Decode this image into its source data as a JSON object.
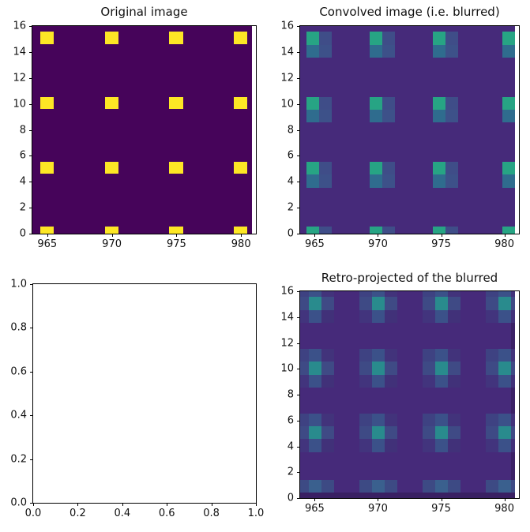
{
  "figure": {
    "background": "#ffffff",
    "layout": "2x2 subplot grid"
  },
  "chart_data": [
    {
      "type": "heatmap",
      "title": "Original image",
      "colormap": "viridis",
      "xlim": [
        963.85,
        981.15
      ],
      "ylim": [
        0,
        16
      ],
      "xticks": [
        965,
        970,
        975,
        980
      ],
      "xtick_labels": [
        "965",
        "970",
        "975",
        "980"
      ],
      "yticks": [
        0,
        2,
        4,
        6,
        8,
        10,
        12,
        14,
        16
      ],
      "ytick_labels": [
        "0",
        "2",
        "4",
        "6",
        "8",
        "10",
        "12",
        "14",
        "16"
      ],
      "image": {
        "extent": [
          963.85,
          980.85,
          0,
          16
        ],
        "background": "#46045a"
      },
      "impulse_centers_x": [
        965,
        970,
        975,
        980
      ],
      "impulse_centers_y": [
        0,
        5,
        10,
        15
      ],
      "impulse_color": "#fde725",
      "layers": [
        {
          "kind": "blobs",
          "cx": [
            965,
            970,
            975,
            980
          ],
          "cy": [
            15.05,
            10.05,
            5.05,
            0.03
          ],
          "cells": [
            {
              "dx": -0.55,
              "dy": 0.5,
              "w": 1.05,
              "h": 0.95,
              "color": "#fde725"
            }
          ]
        }
      ]
    },
    {
      "type": "heatmap",
      "title": "Convolved image (i.e. blurred)",
      "colormap": "viridis",
      "xlim": [
        963.85,
        981.15
      ],
      "ylim": [
        0,
        16
      ],
      "xticks": [
        965,
        970,
        975,
        980
      ],
      "xtick_labels": [
        "965",
        "970",
        "975",
        "980"
      ],
      "yticks": [
        0,
        2,
        4,
        6,
        8,
        10,
        12,
        14,
        16
      ],
      "ytick_labels": [
        "0",
        "2",
        "4",
        "6",
        "8",
        "10",
        "12",
        "14",
        "16"
      ],
      "image": {
        "extent": [
          963.85,
          980.85,
          0,
          16
        ],
        "background": "#462a7a"
      },
      "blob_centers_x": [
        965,
        970,
        975,
        980
      ],
      "blob_centers_y": [
        0,
        5,
        10,
        15
      ],
      "layers": [
        {
          "kind": "blobs",
          "cx": [
            965,
            970,
            975
          ],
          "cy": [
            15.05,
            10.05,
            5.05,
            0.05
          ],
          "cells": [
            {
              "dx": -0.65,
              "dy": 0.5,
              "w": 1,
              "h": 1,
              "color": "#27a484"
            },
            {
              "dx": 0.35,
              "dy": 0.5,
              "w": 1,
              "h": 1,
              "color": "#3f4d88"
            },
            {
              "dx": -0.65,
              "dy": -0.5,
              "w": 1,
              "h": 1,
              "color": "#2f6c8e"
            },
            {
              "dx": 0.35,
              "dy": -0.5,
              "w": 1,
              "h": 1,
              "color": "#3d5189"
            }
          ]
        },
        {
          "kind": "blobs",
          "cx": [
            980
          ],
          "cy": [
            15.05,
            10.05,
            5.05,
            0.05
          ],
          "cells": [
            {
              "dx": -0.15,
              "dy": 0.5,
              "w": 1.05,
              "h": 1,
              "color": "#27a484"
            },
            {
              "dx": -0.15,
              "dy": -0.5,
              "w": 1.05,
              "h": 1,
              "color": "#2f6c8e"
            }
          ]
        }
      ]
    },
    {
      "type": "empty",
      "title": "",
      "xlim": [
        0,
        1
      ],
      "ylim": [
        0,
        1
      ],
      "xticks": [
        0,
        0.2,
        0.4,
        0.6,
        0.8,
        1
      ],
      "xtick_labels": [
        "0.0",
        "0.2",
        "0.4",
        "0.6",
        "0.8",
        "1.0"
      ],
      "yticks": [
        0,
        0.2,
        0.4,
        0.6,
        0.8,
        1
      ],
      "ytick_labels": [
        "0.0",
        "0.2",
        "0.4",
        "0.6",
        "0.8",
        "1.0"
      ],
      "image": null,
      "layers": []
    },
    {
      "type": "heatmap",
      "title": "Retro-projected of the blurred",
      "colormap": "viridis",
      "xlim": [
        963.85,
        981.15
      ],
      "ylim": [
        0,
        16
      ],
      "xticks": [
        965,
        970,
        975,
        980
      ],
      "xtick_labels": [
        "965",
        "970",
        "975",
        "980"
      ],
      "yticks": [
        0,
        2,
        4,
        6,
        8,
        10,
        12,
        14,
        16
      ],
      "ytick_labels": [
        "0",
        "2",
        "4",
        "6",
        "8",
        "10",
        "12",
        "14",
        "16"
      ],
      "image": {
        "extent": [
          963.85,
          980.85,
          0,
          16
        ],
        "background": "#462a7a"
      },
      "blob_centers_x": [
        965,
        970,
        975,
        980
      ],
      "blob_centers_y": [
        0,
        5,
        10,
        15
      ],
      "layers": [
        {
          "kind": "rect",
          "x": 980.5,
          "y": 16,
          "w": 0.35,
          "h": 16,
          "color": "#3b2166"
        },
        {
          "kind": "rect",
          "x": 963.85,
          "y": 0.42,
          "w": 17,
          "h": 0.42,
          "color": "#392063"
        },
        {
          "kind": "blobs",
          "cx": [
            965,
            970,
            975,
            980
          ],
          "cy": [
            15.05,
            10.05,
            5.05
          ],
          "cells": [
            {
              "dx": -1.45,
              "dy": 1.5,
              "w": 1,
              "h": 1,
              "color": "#3e4282"
            },
            {
              "dx": -0.45,
              "dy": 1.5,
              "w": 1,
              "h": 1,
              "color": "#3b5189"
            },
            {
              "dx": 0.55,
              "dy": 1.5,
              "w": 1,
              "h": 1,
              "color": "#42337b"
            },
            {
              "dx": -1.45,
              "dy": 0.5,
              "w": 1,
              "h": 1,
              "color": "#3e4a85"
            },
            {
              "dx": -0.45,
              "dy": 0.5,
              "w": 1,
              "h": 1,
              "color": "#298b8d"
            },
            {
              "dx": 0.55,
              "dy": 0.5,
              "w": 1,
              "h": 1,
              "color": "#3f4a85"
            },
            {
              "dx": -1.45,
              "dy": -0.5,
              "w": 1,
              "h": 1,
              "color": "#42347d"
            },
            {
              "dx": -0.45,
              "dy": -0.5,
              "w": 1,
              "h": 1,
              "color": "#3b5189"
            },
            {
              "dx": 0.55,
              "dy": -0.5,
              "w": 1,
              "h": 1,
              "color": "#413179"
            }
          ]
        },
        {
          "kind": "blobs",
          "cx": [
            965,
            970,
            975,
            980
          ],
          "cy": [
            0
          ],
          "cells": [
            {
              "dx": -1.45,
              "dy": 1.42,
              "w": 1,
              "h": 1,
              "color": "#3d4a84"
            },
            {
              "dx": -0.45,
              "dy": 1.42,
              "w": 1,
              "h": 1,
              "color": "#3a608e"
            },
            {
              "dx": 0.55,
              "dy": 1.42,
              "w": 1,
              "h": 1,
              "color": "#3d4a84"
            }
          ]
        }
      ]
    }
  ]
}
